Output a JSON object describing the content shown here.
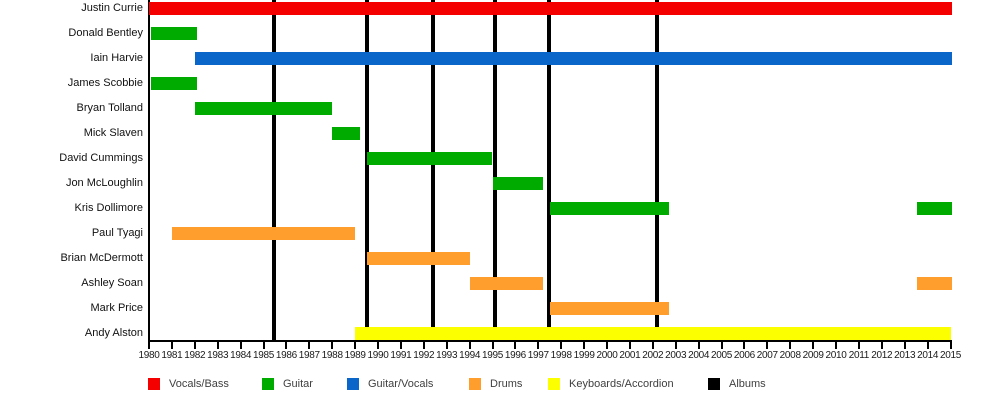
{
  "chart_data": {
    "type": "bar",
    "variant": "gantt-member-timeline",
    "title": "",
    "x_axis": {
      "min": 1980,
      "max": 2015,
      "tick_years": [
        1980,
        1981,
        1982,
        1983,
        1984,
        1985,
        1986,
        1987,
        1988,
        1989,
        1990,
        1991,
        1992,
        1993,
        1994,
        1995,
        1996,
        1997,
        1998,
        1999,
        2000,
        2001,
        2002,
        2003,
        2004,
        2005,
        2006,
        2007,
        2008,
        2009,
        2010,
        2011,
        2012,
        2013,
        2014,
        2015
      ]
    },
    "members": [
      {
        "name": "Justin Currie",
        "role": "Vocals/Bass",
        "segments": [
          [
            1980.0,
            2015.05
          ]
        ]
      },
      {
        "name": "Donald Bentley",
        "role": "Guitar",
        "segments": [
          [
            1980.1,
            1982.1
          ]
        ]
      },
      {
        "name": "Iain Harvie",
        "role": "Guitar/Vocals",
        "segments": [
          [
            1982.0,
            2015.05
          ]
        ]
      },
      {
        "name": "James Scobbie",
        "role": "Guitar",
        "segments": [
          [
            1980.1,
            1982.1
          ]
        ]
      },
      {
        "name": "Bryan Tolland",
        "role": "Guitar",
        "segments": [
          [
            1982.0,
            1988.0
          ]
        ]
      },
      {
        "name": "Mick Slaven",
        "role": "Guitar",
        "segments": [
          [
            1988.0,
            1989.2
          ]
        ]
      },
      {
        "name": "David Cummings",
        "role": "Guitar",
        "segments": [
          [
            1989.5,
            1995.0
          ]
        ]
      },
      {
        "name": "Jon McLoughlin",
        "role": "Guitar",
        "segments": [
          [
            1995.0,
            1997.2
          ]
        ]
      },
      {
        "name": "Kris Dollimore",
        "role": "Guitar",
        "segments": [
          [
            1997.5,
            2002.7
          ],
          [
            2013.55,
            2015.05
          ]
        ]
      },
      {
        "name": "Paul Tyagi",
        "role": "Drums",
        "segments": [
          [
            1981.0,
            1989.0
          ]
        ]
      },
      {
        "name": "Brian McDermott",
        "role": "Drums",
        "segments": [
          [
            1989.5,
            1994.0
          ]
        ]
      },
      {
        "name": "Ashley Soan",
        "role": "Drums",
        "segments": [
          [
            1994.0,
            1997.2
          ],
          [
            2013.55,
            2015.05
          ]
        ]
      },
      {
        "name": "Mark Price",
        "role": "Drums",
        "segments": [
          [
            1997.5,
            2002.7
          ]
        ]
      },
      {
        "name": "Andy Alston",
        "role": "Keyboards/Accordion",
        "segments": [
          [
            1989.0,
            2015.02
          ]
        ]
      }
    ],
    "album_lines_years": [
      1985.45,
      1989.5,
      1992.4,
      1995.1,
      1997.45,
      2002.2
    ],
    "legend": [
      {
        "label": "Vocals/Bass",
        "color": "#f40000"
      },
      {
        "label": "Guitar",
        "color": "#00ab00"
      },
      {
        "label": "Guitar/Vocals",
        "color": "#0a66c8"
      },
      {
        "label": "Drums",
        "color": "#ff9e2c"
      },
      {
        "label": "Keyboards/Accordion",
        "color": "#fbff00"
      },
      {
        "label": "Albums",
        "color": "#000000"
      }
    ],
    "axis_color": "#000000",
    "grid": false,
    "legend_position": "bottom"
  }
}
